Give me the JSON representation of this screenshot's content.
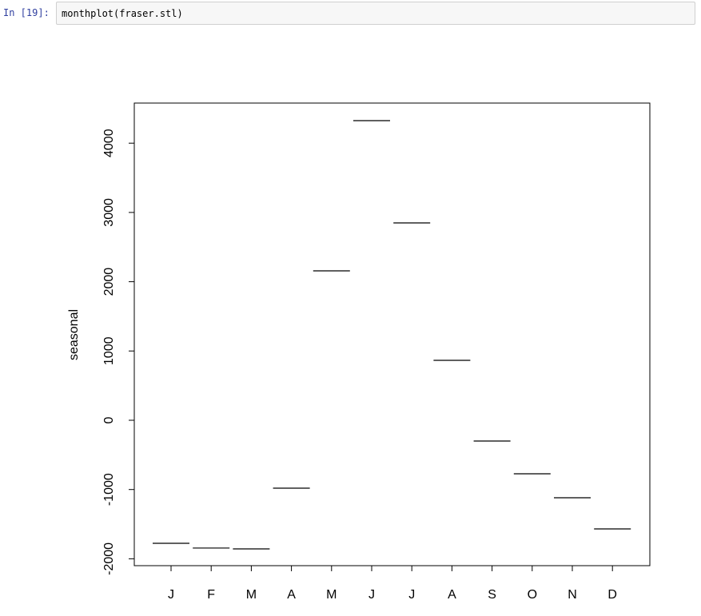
{
  "cell": {
    "prompt": "In [19]:",
    "code": "monthplot(fraser.stl)"
  },
  "chart_data": {
    "type": "line",
    "title": "",
    "xlabel": "",
    "ylabel": "seasonal",
    "categories": [
      "J",
      "F",
      "M",
      "A",
      "M",
      "J",
      "J",
      "A",
      "S",
      "O",
      "N",
      "D"
    ],
    "values": [
      -1776,
      -1845,
      -1857,
      -980,
      2157,
      4325,
      2849,
      865,
      -300,
      -773,
      -1119,
      -1569
    ],
    "yticks": [
      -2000,
      -1000,
      0,
      1000,
      2000,
      3000,
      4000
    ],
    "ylim": [
      -2100,
      4560
    ],
    "grid": false,
    "color": "#000000"
  }
}
